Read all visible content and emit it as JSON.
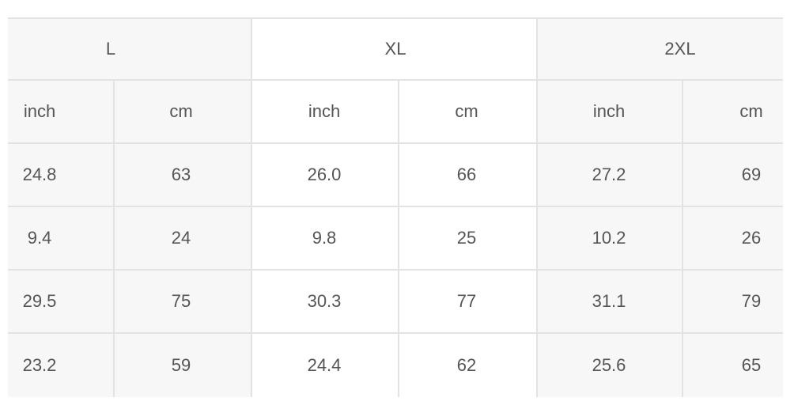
{
  "sizes": [
    "L",
    "XL",
    "2XL"
  ],
  "units": [
    "inch",
    "cm",
    "inch",
    "cm",
    "inch",
    "cm"
  ],
  "rows": [
    [
      "24.8",
      "63",
      "26.0",
      "66",
      "27.2",
      "69"
    ],
    [
      "9.4",
      "24",
      "9.8",
      "25",
      "10.2",
      "26"
    ],
    [
      "29.5",
      "75",
      "30.3",
      "77",
      "31.1",
      "79"
    ],
    [
      "23.2",
      "59",
      "24.4",
      "62",
      "25.6",
      "65"
    ]
  ],
  "colors": {
    "shaded_bg": "#f7f7f7",
    "border": "#e3e3e3",
    "text": "#555555"
  }
}
